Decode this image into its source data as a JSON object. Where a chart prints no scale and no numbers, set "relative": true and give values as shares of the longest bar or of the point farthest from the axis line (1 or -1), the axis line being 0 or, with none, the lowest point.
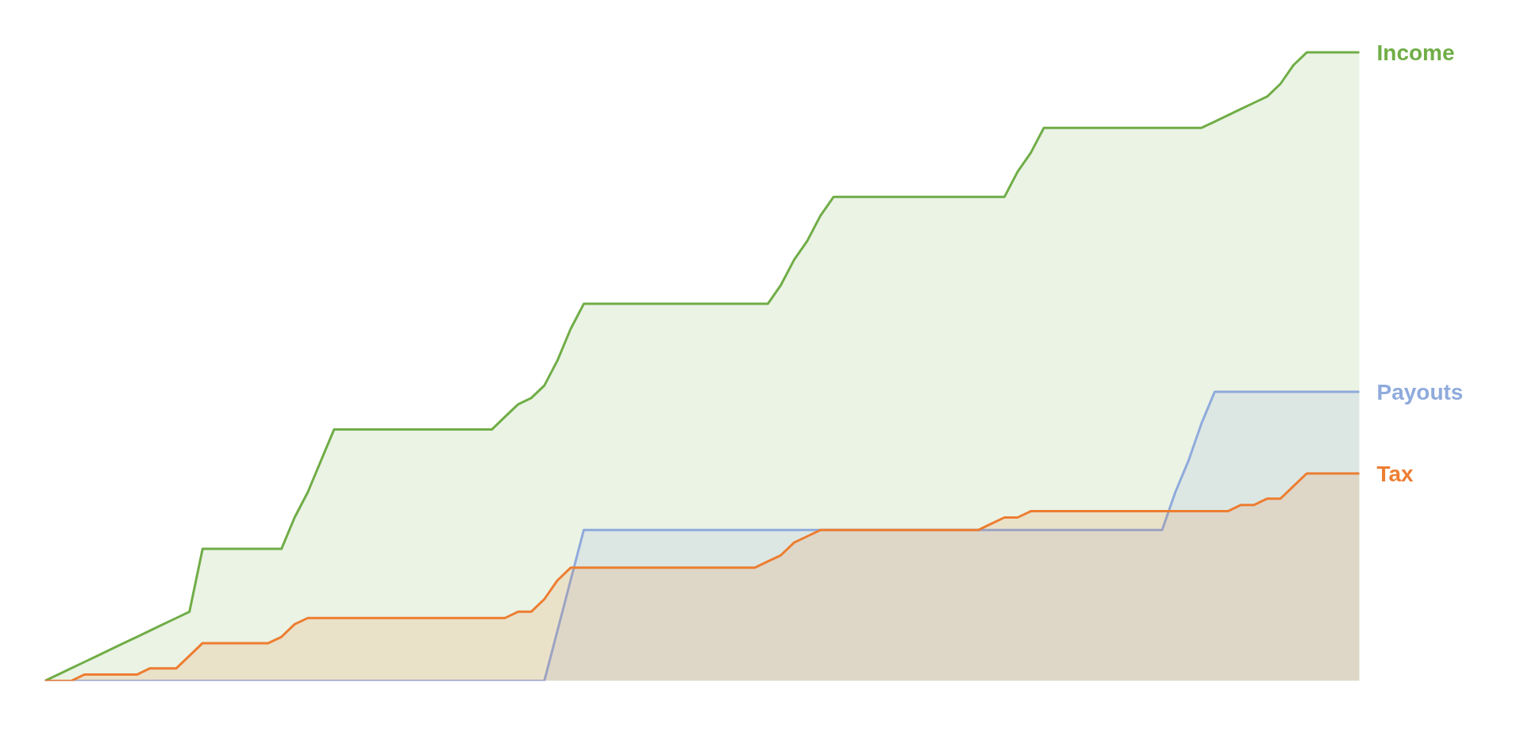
{
  "chart_data": {
    "type": "area",
    "relative": true,
    "categories": [
      null,
      null,
      null,
      null,
      null,
      null,
      null,
      null,
      null,
      null,
      null,
      null,
      null,
      null,
      null,
      null,
      null,
      null,
      null,
      null,
      null,
      null,
      null,
      null,
      null,
      null,
      null,
      null,
      null,
      null,
      null,
      null,
      null,
      null,
      null,
      null,
      null,
      null,
      null,
      null,
      null,
      null,
      null,
      null,
      null,
      null,
      null,
      null,
      null,
      null,
      null,
      null,
      null,
      null,
      null,
      null,
      null,
      null,
      null,
      null,
      null,
      null,
      null,
      null,
      null,
      null,
      null,
      null,
      null,
      null,
      null,
      null,
      null,
      null,
      null,
      null,
      null,
      null,
      null,
      null,
      null,
      null,
      null,
      null,
      null,
      null,
      null,
      null,
      null,
      null,
      null,
      null,
      null,
      null,
      null,
      null,
      null,
      null,
      null,
      null,
      null
    ],
    "series": [
      {
        "name": "Income",
        "color": "#70ad47",
        "values": [
          0,
          0.01,
          0.02,
          0.03,
          0.04,
          0.05,
          0.06,
          0.07,
          0.08,
          0.09,
          0.1,
          0.11,
          0.21,
          0.21,
          0.21,
          0.21,
          0.21,
          0.21,
          0.21,
          0.26,
          0.3,
          0.35,
          0.4,
          0.4,
          0.4,
          0.4,
          0.4,
          0.4,
          0.4,
          0.4,
          0.4,
          0.4,
          0.4,
          0.4,
          0.4,
          0.42,
          0.44,
          0.45,
          0.47,
          0.51,
          0.56,
          0.6,
          0.6,
          0.6,
          0.6,
          0.6,
          0.6,
          0.6,
          0.6,
          0.6,
          0.6,
          0.6,
          0.6,
          0.6,
          0.6,
          0.6,
          0.63,
          0.67,
          0.7,
          0.74,
          0.77,
          0.77,
          0.77,
          0.77,
          0.77,
          0.77,
          0.77,
          0.77,
          0.77,
          0.77,
          0.77,
          0.77,
          0.77,
          0.77,
          0.81,
          0.84,
          0.88,
          0.88,
          0.88,
          0.88,
          0.88,
          0.88,
          0.88,
          0.88,
          0.88,
          0.88,
          0.88,
          0.88,
          0.88,
          0.89,
          0.9,
          0.91,
          0.92,
          0.93,
          0.95,
          0.98,
          1,
          1,
          1,
          1,
          1
        ]
      },
      {
        "name": "Payouts",
        "color": "#8faadc",
        "values": [
          0,
          0,
          0,
          0,
          0,
          0,
          0,
          0,
          0,
          0,
          0,
          0,
          0,
          0,
          0,
          0,
          0,
          0,
          0,
          0,
          0,
          0,
          0,
          0,
          0,
          0,
          0,
          0,
          0,
          0,
          0,
          0,
          0,
          0,
          0,
          0,
          0,
          0,
          0,
          0.08,
          0.16,
          0.24,
          0.24,
          0.24,
          0.24,
          0.24,
          0.24,
          0.24,
          0.24,
          0.24,
          0.24,
          0.24,
          0.24,
          0.24,
          0.24,
          0.24,
          0.24,
          0.24,
          0.24,
          0.24,
          0.24,
          0.24,
          0.24,
          0.24,
          0.24,
          0.24,
          0.24,
          0.24,
          0.24,
          0.24,
          0.24,
          0.24,
          0.24,
          0.24,
          0.24,
          0.24,
          0.24,
          0.24,
          0.24,
          0.24,
          0.24,
          0.24,
          0.24,
          0.24,
          0.24,
          0.24,
          0.3,
          0.35,
          0.41,
          0.46,
          0.46,
          0.46,
          0.46,
          0.46,
          0.46,
          0.46,
          0.46,
          0.46,
          0.46,
          0.46,
          0.46
        ]
      },
      {
        "name": "Tax",
        "color": "#ed7d31",
        "values": [
          0,
          0,
          0,
          0.01,
          0.01,
          0.01,
          0.01,
          0.01,
          0.02,
          0.02,
          0.02,
          0.04,
          0.06,
          0.06,
          0.06,
          0.06,
          0.06,
          0.06,
          0.07,
          0.09,
          0.1,
          0.1,
          0.1,
          0.1,
          0.1,
          0.1,
          0.1,
          0.1,
          0.1,
          0.1,
          0.1,
          0.1,
          0.1,
          0.1,
          0.1,
          0.1,
          0.11,
          0.11,
          0.13,
          0.16,
          0.18,
          0.18,
          0.18,
          0.18,
          0.18,
          0.18,
          0.18,
          0.18,
          0.18,
          0.18,
          0.18,
          0.18,
          0.18,
          0.18,
          0.18,
          0.19,
          0.2,
          0.22,
          0.23,
          0.24,
          0.24,
          0.24,
          0.24,
          0.24,
          0.24,
          0.24,
          0.24,
          0.24,
          0.24,
          0.24,
          0.24,
          0.24,
          0.25,
          0.26,
          0.26,
          0.27,
          0.27,
          0.27,
          0.27,
          0.27,
          0.27,
          0.27,
          0.27,
          0.27,
          0.27,
          0.27,
          0.27,
          0.27,
          0.27,
          0.27,
          0.27,
          0.28,
          0.28,
          0.29,
          0.29,
          0.31,
          0.33,
          0.33,
          0.33,
          0.33,
          0.33
        ]
      }
    ]
  }
}
